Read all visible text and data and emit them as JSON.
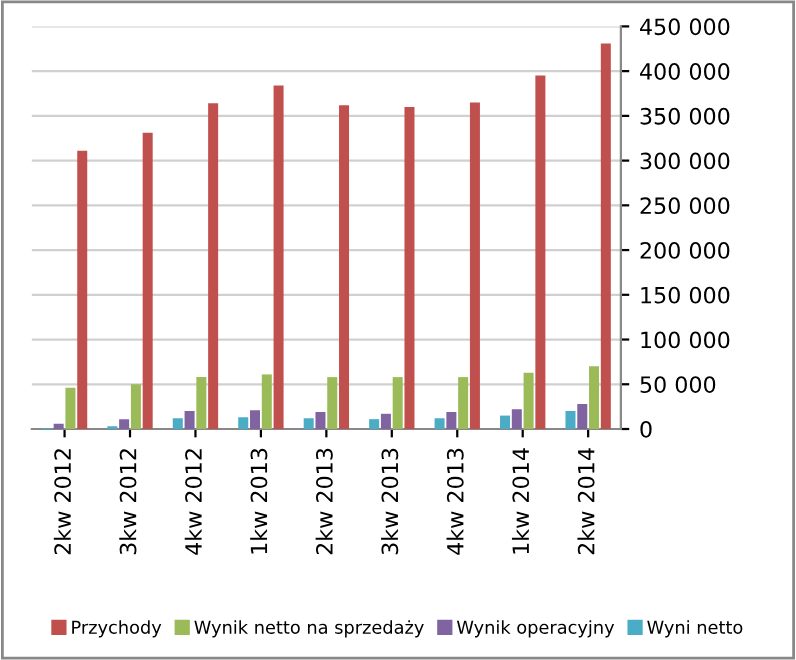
{
  "chart_data": {
    "type": "bar",
    "categories": [
      "2kw 2012",
      "3kw 2012",
      "4kw 2012",
      "1kw 2013",
      "2kw 2013",
      "3kw 2013",
      "4kw 2013",
      "1kw 2014",
      "2kw 2014"
    ],
    "series": [
      {
        "name": "Przychody",
        "color": "#c0504d",
        "values": [
          311000,
          331000,
          364000,
          384000,
          362000,
          360000,
          365000,
          395000,
          431000
        ]
      },
      {
        "name": "Wynik netto na sprzedaży",
        "color": "#9bbb59",
        "values": [
          46000,
          50000,
          58000,
          61000,
          58000,
          58000,
          58000,
          63000,
          70000
        ]
      },
      {
        "name": "Wynik operacyjny",
        "color": "#8064a2",
        "values": [
          6000,
          11000,
          20000,
          21000,
          19000,
          17000,
          19000,
          22000,
          28000
        ]
      },
      {
        "name": "Wyni netto",
        "color": "#4bacc6",
        "values": [
          1000,
          3000,
          12000,
          13000,
          12000,
          11000,
          12000,
          15000,
          20000
        ]
      }
    ],
    "ylim": [
      0,
      450000
    ],
    "yticks": [
      {
        "value": 0,
        "label": "0"
      },
      {
        "value": 50000,
        "label": "50 000"
      },
      {
        "value": 100000,
        "label": "100 000"
      },
      {
        "value": 150000,
        "label": "150 000"
      },
      {
        "value": 200000,
        "label": "200 000"
      },
      {
        "value": 250000,
        "label": "250 000"
      },
      {
        "value": 300000,
        "label": "300 000"
      },
      {
        "value": 350000,
        "label": "350 000"
      },
      {
        "value": 400000,
        "label": "400 000"
      },
      {
        "value": 450000,
        "label": "450 000"
      }
    ],
    "grid": "y",
    "legend": "bottom"
  }
}
